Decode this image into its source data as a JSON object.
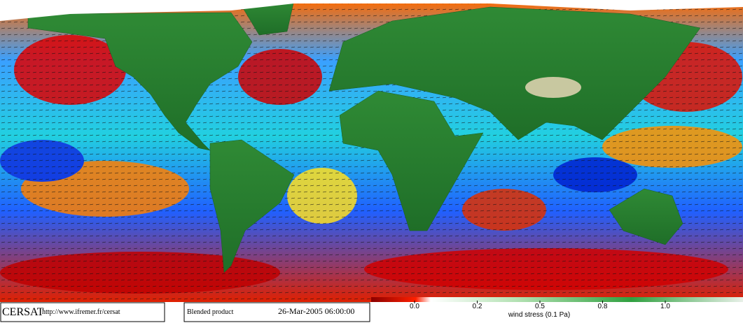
{
  "footer": {
    "logo": "CERSAT",
    "url": "http://www.ifremer.fr/cersat",
    "product": "Blended product",
    "date": "26-Mar-2005 06:00:00"
  },
  "colorbar": {
    "label": "wind stress (0.1 Pa)",
    "ticks": [
      {
        "value": 0,
        "label": "0.0"
      },
      0.2,
      0.5,
      0.8,
      {
        "value": 1,
        "label": "1.0"
      }
    ]
  }
}
